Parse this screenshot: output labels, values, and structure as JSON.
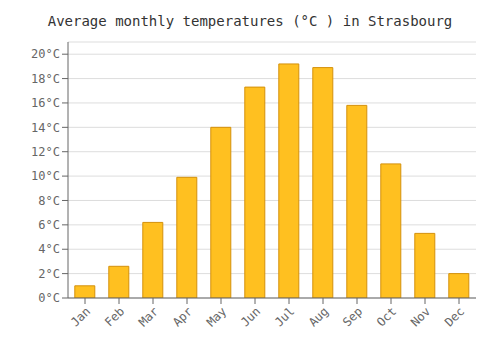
{
  "chart_data": {
    "type": "bar",
    "title": "Average monthly temperatures (°C ) in Strasbourg",
    "categories": [
      "Jan",
      "Feb",
      "Mar",
      "Apr",
      "May",
      "Jun",
      "Jul",
      "Aug",
      "Sep",
      "Oct",
      "Nov",
      "Dec"
    ],
    "values": [
      1.0,
      2.6,
      6.2,
      9.9,
      14.0,
      17.3,
      19.2,
      18.9,
      15.8,
      11.0,
      5.3,
      2.0
    ],
    "color": "#FFC020",
    "ylim": [
      0,
      21
    ],
    "yticks": [
      {
        "value": 0,
        "label": "0°C"
      },
      {
        "value": 2,
        "label": "2°C"
      },
      {
        "value": 4,
        "label": "4°C"
      },
      {
        "value": 6,
        "label": "6°C"
      },
      {
        "value": 8,
        "label": "8°C"
      },
      {
        "value": 10,
        "label": "10°C"
      },
      {
        "value": 12,
        "label": "12°C"
      },
      {
        "value": 14,
        "label": "14°C"
      },
      {
        "value": 16,
        "label": "16°C"
      },
      {
        "value": 18,
        "label": "18°C"
      },
      {
        "value": 20,
        "label": "20°C"
      }
    ],
    "grid": true
  }
}
